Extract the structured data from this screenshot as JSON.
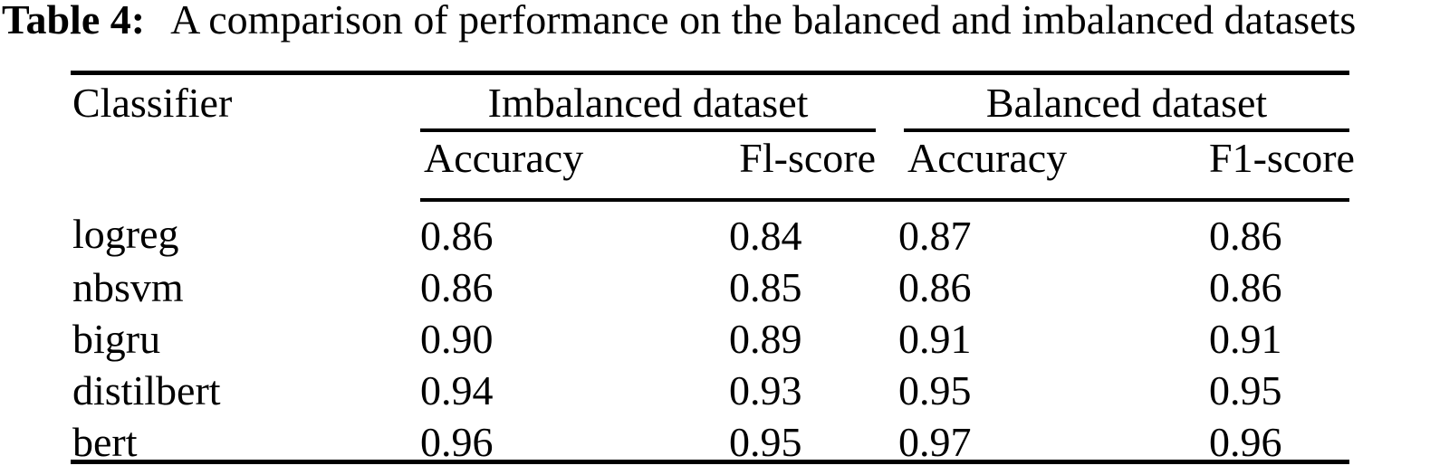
{
  "caption": {
    "label": "Table 4:",
    "text": "A comparison of performance on the balanced and imbalanced datasets"
  },
  "table": {
    "classifier_header": "Classifier",
    "groups": [
      {
        "label": "Imbalanced dataset",
        "columns": [
          "Accuracy",
          "Fl-score"
        ]
      },
      {
        "label": "Balanced dataset",
        "columns": [
          "Accuracy",
          "F1-score"
        ]
      }
    ],
    "rows": [
      {
        "classifier": "logreg",
        "values": [
          "0.86",
          "0.84",
          "0.87",
          "0.86"
        ]
      },
      {
        "classifier": "nbsvm",
        "values": [
          "0.86",
          "0.85",
          "0.86",
          "0.86"
        ]
      },
      {
        "classifier": "bigru",
        "values": [
          "0.90",
          "0.89",
          "0.91",
          "0.91"
        ]
      },
      {
        "classifier": "distilbert",
        "values": [
          "0.94",
          "0.93",
          "0.95",
          "0.95"
        ]
      },
      {
        "classifier": "bert",
        "values": [
          "0.96",
          "0.95",
          "0.97",
          "0.96"
        ]
      }
    ]
  },
  "colors": {
    "text": "#000000",
    "background": "#ffffff",
    "rule": "#000000"
  }
}
